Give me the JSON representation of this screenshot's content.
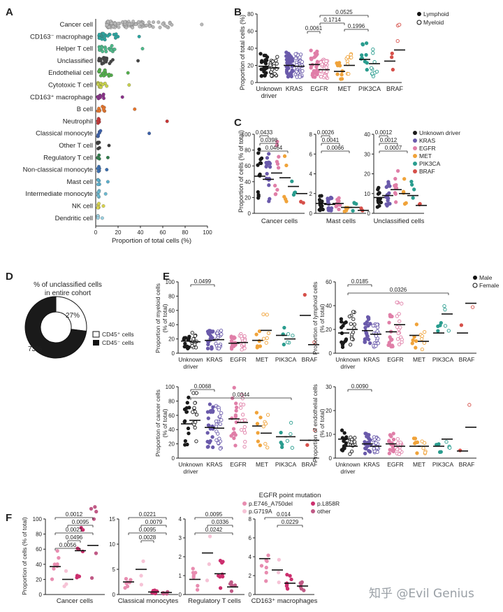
{
  "watermark": "知乎 @Evil Genius",
  "colors": {
    "lymphoid": "#1a1a1a",
    "myeloid": "#1a1a1a",
    "wt": "#1a1a1a",
    "kras": "#6a5aab",
    "egfr": "#e07fa8",
    "met": "#f0a33a",
    "pik3ca": "#2a9d8f",
    "braf": "#d6504a"
  },
  "panels": {
    "A": {
      "label": "A",
      "type": "beeswarm",
      "xlabel": "Proportion of total cells (%)",
      "xticks": [
        0,
        20,
        40,
        60,
        80,
        100
      ],
      "categories": [
        {
          "name": "Cancer cell",
          "color": "#b8b8b8",
          "median": 43,
          "range": [
            8,
            93
          ]
        },
        {
          "name": "CD163⁻ macrophage",
          "color": "#2aa5a0",
          "median": 12,
          "range": [
            1,
            37
          ]
        },
        {
          "name": "Helper T cell",
          "color": "#4dbb8a",
          "median": 10,
          "range": [
            1,
            40
          ]
        },
        {
          "name": "Unclassified",
          "color": "#444444",
          "median": 10,
          "range": [
            1,
            36
          ]
        },
        {
          "name": "Endothelial cell",
          "color": "#52b04a",
          "median": 8,
          "range": [
            1,
            27
          ]
        },
        {
          "name": "Cytotoxic T cell",
          "color": "#c8d24a",
          "median": 6,
          "range": [
            0,
            28
          ]
        },
        {
          "name": "CD163⁺ macrophage",
          "color": "#8a2f8a",
          "median": 5,
          "range": [
            0,
            22
          ]
        },
        {
          "name": "B cell",
          "color": "#e8752a",
          "median": 4,
          "range": [
            0,
            33
          ]
        },
        {
          "name": "Neutrophil",
          "color": "#cc3333",
          "median": 2,
          "range": [
            0,
            62
          ]
        },
        {
          "name": "Classical monocyte",
          "color": "#3a5faa",
          "median": 2,
          "range": [
            0,
            46
          ]
        },
        {
          "name": "Other T cell",
          "color": "#3b3b3b",
          "median": 1.5,
          "range": [
            0,
            10
          ]
        },
        {
          "name": "Regulatory T cell",
          "color": "#2e7d4a",
          "median": 1.5,
          "range": [
            0,
            9
          ]
        },
        {
          "name": "Non-classical monocyte",
          "color": "#3a6fb0",
          "median": 1,
          "range": [
            0,
            8
          ]
        },
        {
          "name": "Mast cell",
          "color": "#5ab0cf",
          "median": 1,
          "range": [
            0,
            9
          ]
        },
        {
          "name": "Intermediate monocyte",
          "color": "#6bbad2",
          "median": 0.8,
          "range": [
            0,
            7
          ]
        },
        {
          "name": "NK cell",
          "color": "#d9d44a",
          "median": 0.6,
          "range": [
            0,
            5
          ]
        },
        {
          "name": "Dendritic cell",
          "color": "#9bd0e0",
          "median": 0.4,
          "range": [
            0,
            4
          ]
        }
      ]
    },
    "B": {
      "label": "B",
      "ylabel": "Proportion of total cells (%)",
      "yticks": [
        0,
        20,
        40,
        60,
        80
      ],
      "groups": [
        "Unknown\ndriver",
        "KRAS",
        "EGFR",
        "MET",
        "PIK3CA",
        "BRAF"
      ],
      "legend": [
        "Lymphoid",
        "Myeloid"
      ],
      "medians": {
        "lymphoid": [
          19,
          20,
          21,
          13,
          27,
          25
        ],
        "myeloid": [
          17,
          19,
          15,
          20,
          22,
          38
        ]
      },
      "pvals": [
        {
          "text": "0.0525",
          "from": 2,
          "to": 4,
          "level": 3
        },
        {
          "text": "0.1714",
          "from": 2,
          "to": 3,
          "level": 2
        },
        {
          "text": "0.0061",
          "from": 2,
          "to": 2,
          "level": 1
        },
        {
          "text": "0.1996",
          "from": 3,
          "to": 4,
          "level": 1
        }
      ]
    },
    "C": {
      "label": "C",
      "ylabel": "Proportion of cells (% of total)",
      "legend": [
        "Unknown driver",
        "KRAS",
        "EGFR",
        "MET",
        "PIK3CA",
        "BRAF"
      ],
      "subplots": [
        {
          "xlabel": "Cancer cells",
          "ymax": 100,
          "yticks": [
            0,
            20,
            40,
            60,
            80,
            100
          ],
          "medians": [
            47,
            43,
            51,
            45,
            34,
            25
          ],
          "pvals": [
            "0.0433",
            "0.0398",
            "0.0464"
          ]
        },
        {
          "xlabel": "Mast cells",
          "ymax": 8,
          "yticks": [
            0,
            2,
            4,
            6,
            8
          ],
          "medians": [
            1.0,
            0.9,
            1.0,
            0.6,
            0.6,
            0.3
          ],
          "pvals": [
            "0.0026",
            "0.0041",
            "0.0066"
          ]
        },
        {
          "xlabel": "Unclassified cells",
          "ymax": 40,
          "yticks": [
            0,
            10,
            20,
            30,
            40
          ],
          "medians": [
            8,
            9,
            12,
            10,
            9,
            4
          ],
          "pvals": [
            "0.0012",
            "0.0012",
            "0.0007"
          ]
        }
      ]
    },
    "D": {
      "label": "D",
      "title": "% of unclassified cells\nin entire cohort",
      "slices": [
        {
          "name": "CD45⁺ cells",
          "value": 27,
          "label": "27%"
        },
        {
          "name": "CD45⁻ cells",
          "value": 73,
          "label": "73%"
        }
      ]
    },
    "E": {
      "label": "E",
      "groups": [
        "Unknown\ndriver",
        "KRAS",
        "EGFR",
        "MET",
        "PIK3CA",
        "BRAF"
      ],
      "legend": [
        "Male",
        "Female"
      ],
      "subplots": [
        {
          "ylabel": "Proportion of myeloid cells\n(% of total)",
          "yticks": [
            0,
            20,
            40,
            60,
            80,
            100
          ],
          "ymax": 100,
          "male": [
            17,
            18,
            14,
            18,
            25,
            53
          ],
          "female": [
            16,
            19,
            15,
            32,
            20,
            12
          ],
          "pvals": [
            "0.0499"
          ]
        },
        {
          "ylabel": "Proportion of lymphoid cells\n(% of total)",
          "yticks": [
            0,
            20,
            40,
            60
          ],
          "ymax": 60,
          "male": [
            17,
            19,
            18,
            15,
            17,
            17
          ],
          "female": [
            20,
            16,
            24,
            10,
            33,
            42
          ],
          "pvals": [
            "0.0185",
            "0.0326"
          ]
        },
        {
          "ylabel": "Proportion of cancer cells\n(% of total)",
          "yticks": [
            0,
            20,
            40,
            60,
            80,
            100
          ],
          "ymax": 100,
          "male": [
            48,
            43,
            55,
            45,
            30,
            25
          ],
          "female": [
            53,
            42,
            50,
            35,
            30,
            25
          ],
          "pvals": [
            "0.0068",
            "0.0344"
          ]
        },
        {
          "ylabel": "Proportion of endothelial cells\n(% of total)",
          "yticks": [
            0,
            10,
            20,
            30
          ],
          "ymax": 30,
          "male": [
            8,
            6,
            6,
            5,
            5,
            3
          ],
          "female": [
            5,
            5,
            5,
            5,
            8,
            13
          ],
          "pvals": [
            "0.0090"
          ]
        }
      ]
    },
    "F": {
      "label": "F",
      "title": "EGFR point mutation",
      "legend": [
        "p.E746_A750del",
        "p.G719A",
        "p.L858R",
        "other"
      ],
      "legend_colors": [
        "#e88cb0",
        "#f6c3d6",
        "#cc2f6e",
        "#c05a86"
      ],
      "ylabel": "Proportion of cells (% of total)",
      "subplots": [
        {
          "xlabel": "Cancer cells",
          "ymax": 100,
          "yticks": [
            0,
            20,
            40,
            60,
            80,
            100
          ],
          "medians": [
            37,
            20,
            58,
            65
          ],
          "pvals": [
            "0.0012",
            "0.0095",
            "0.0021",
            "0.0496",
            "0.0056"
          ]
        },
        {
          "xlabel": "Classical monocytes",
          "ymax": 15,
          "yticks": [
            0,
            5,
            10,
            15
          ],
          "medians": [
            2.5,
            5,
            0.5,
            0.4
          ],
          "pvals": [
            "0.0221",
            "0.0079",
            "0.0095",
            "0.0028"
          ]
        },
        {
          "xlabel": "Regulatory T cells",
          "ymax": 4,
          "yticks": [
            0,
            1,
            2,
            3,
            4
          ],
          "medians": [
            0.8,
            2.2,
            1.1,
            0.4
          ],
          "pvals": [
            "0.0095",
            "0.0336",
            "0.0242"
          ]
        },
        {
          "xlabel": "CD163⁺ macrophages",
          "ymax": 8,
          "yticks": [
            0,
            2,
            4,
            6,
            8
          ],
          "medians": [
            3.8,
            2.6,
            1.2,
            0.9
          ],
          "pvals": [
            "0.014",
            "0.0229"
          ]
        }
      ]
    }
  }
}
